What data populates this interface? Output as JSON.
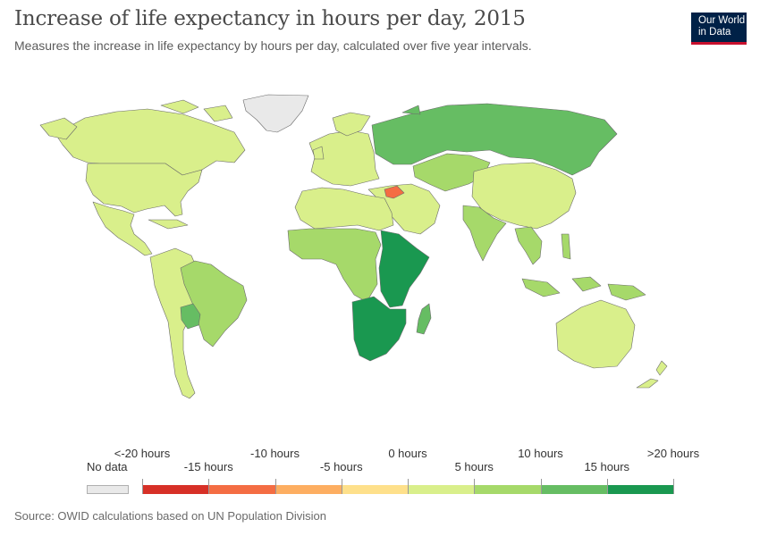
{
  "header": {
    "title": "Increase of life expectancy in hours per day, 2015",
    "subtitle": "Measures the increase in life expectancy by hours per day, calculated over five year intervals.",
    "logo_line1": "Our World",
    "logo_line2": "in Data"
  },
  "colors": {
    "nodata": "#e9e9e9",
    "border": "#6b6b6b",
    "bins": [
      "#d73027",
      "#f46d43",
      "#fdae61",
      "#fee08b",
      "#d9ef8b",
      "#a6d96a",
      "#66bd63",
      "#1a9850"
    ],
    "logo_bg": "#002147",
    "logo_accent": "#c8102e"
  },
  "legend": {
    "nodata_label": "No data",
    "ticks_top": [
      "<-20 hours",
      "-10 hours",
      "0 hours",
      "10 hours",
      ">20 hours"
    ],
    "ticks_bottom": [
      "-15 hours",
      "-5 hours",
      "5 hours",
      "15 hours"
    ]
  },
  "map_regions": [
    {
      "region": "Greenland",
      "bin": "nodata"
    },
    {
      "region": "Canada",
      "bin": 4
    },
    {
      "region": "United States",
      "bin": 4
    },
    {
      "region": "Mexico & Central America",
      "bin": 4
    },
    {
      "region": "South America",
      "bin": 4
    },
    {
      "region": "Brazil",
      "bin": 5
    },
    {
      "region": "Bolivia",
      "bin": 6
    },
    {
      "region": "Europe",
      "bin": 4
    },
    {
      "region": "Russia",
      "bin": 6
    },
    {
      "region": "Central Asia",
      "bin": 5
    },
    {
      "region": "China",
      "bin": 4
    },
    {
      "region": "India",
      "bin": 5
    },
    {
      "region": "Middle East",
      "bin": 4
    },
    {
      "region": "Syria",
      "bin": 1
    },
    {
      "region": "North Africa",
      "bin": 4
    },
    {
      "region": "West & Central Africa",
      "bin": 5
    },
    {
      "region": "East Africa",
      "bin": 7
    },
    {
      "region": "Southern Africa",
      "bin": 7
    },
    {
      "region": "Madagascar",
      "bin": 6
    },
    {
      "region": "Southeast Asia",
      "bin": 5
    },
    {
      "region": "Australia",
      "bin": 4
    },
    {
      "region": "New Zealand",
      "bin": 4
    }
  ],
  "footer": {
    "source": "Source: OWID calculations based on UN Population Division"
  }
}
